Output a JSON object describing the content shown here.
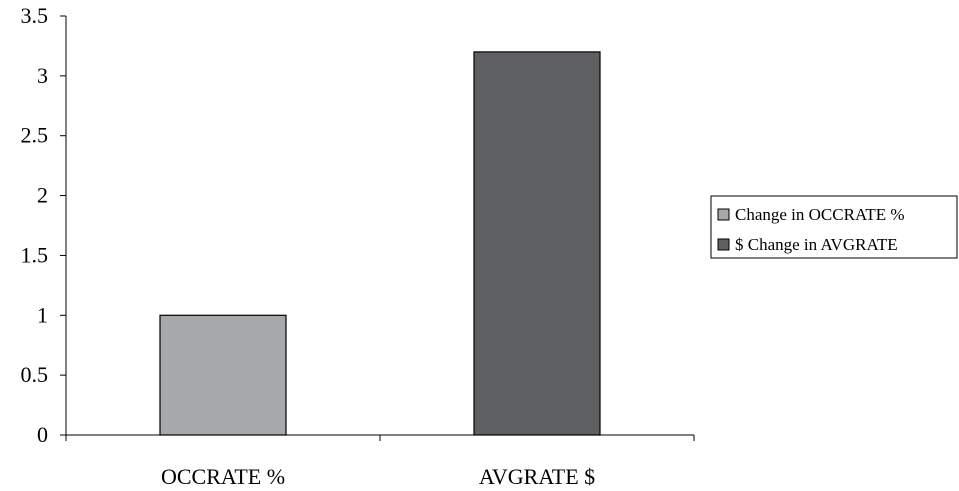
{
  "chart_data": {
    "type": "bar",
    "categories": [
      "OCCRATE %",
      "AVGRATE $"
    ],
    "series": [
      {
        "name": "Change in OCCRATE %",
        "values": [
          1.0,
          null
        ],
        "color": "#a6a8aa"
      },
      {
        "name": "$ Change in AVGRATE",
        "values": [
          null,
          3.2
        ],
        "color": "#5f6062"
      }
    ],
    "title": "",
    "xlabel": "",
    "ylabel": "",
    "ylim": [
      0,
      3.5
    ],
    "yticks": [
      "0",
      "0.5",
      "1",
      "1.5",
      "2",
      "2.5",
      "3",
      "3.5"
    ],
    "grid": false,
    "legend_position": "right"
  }
}
